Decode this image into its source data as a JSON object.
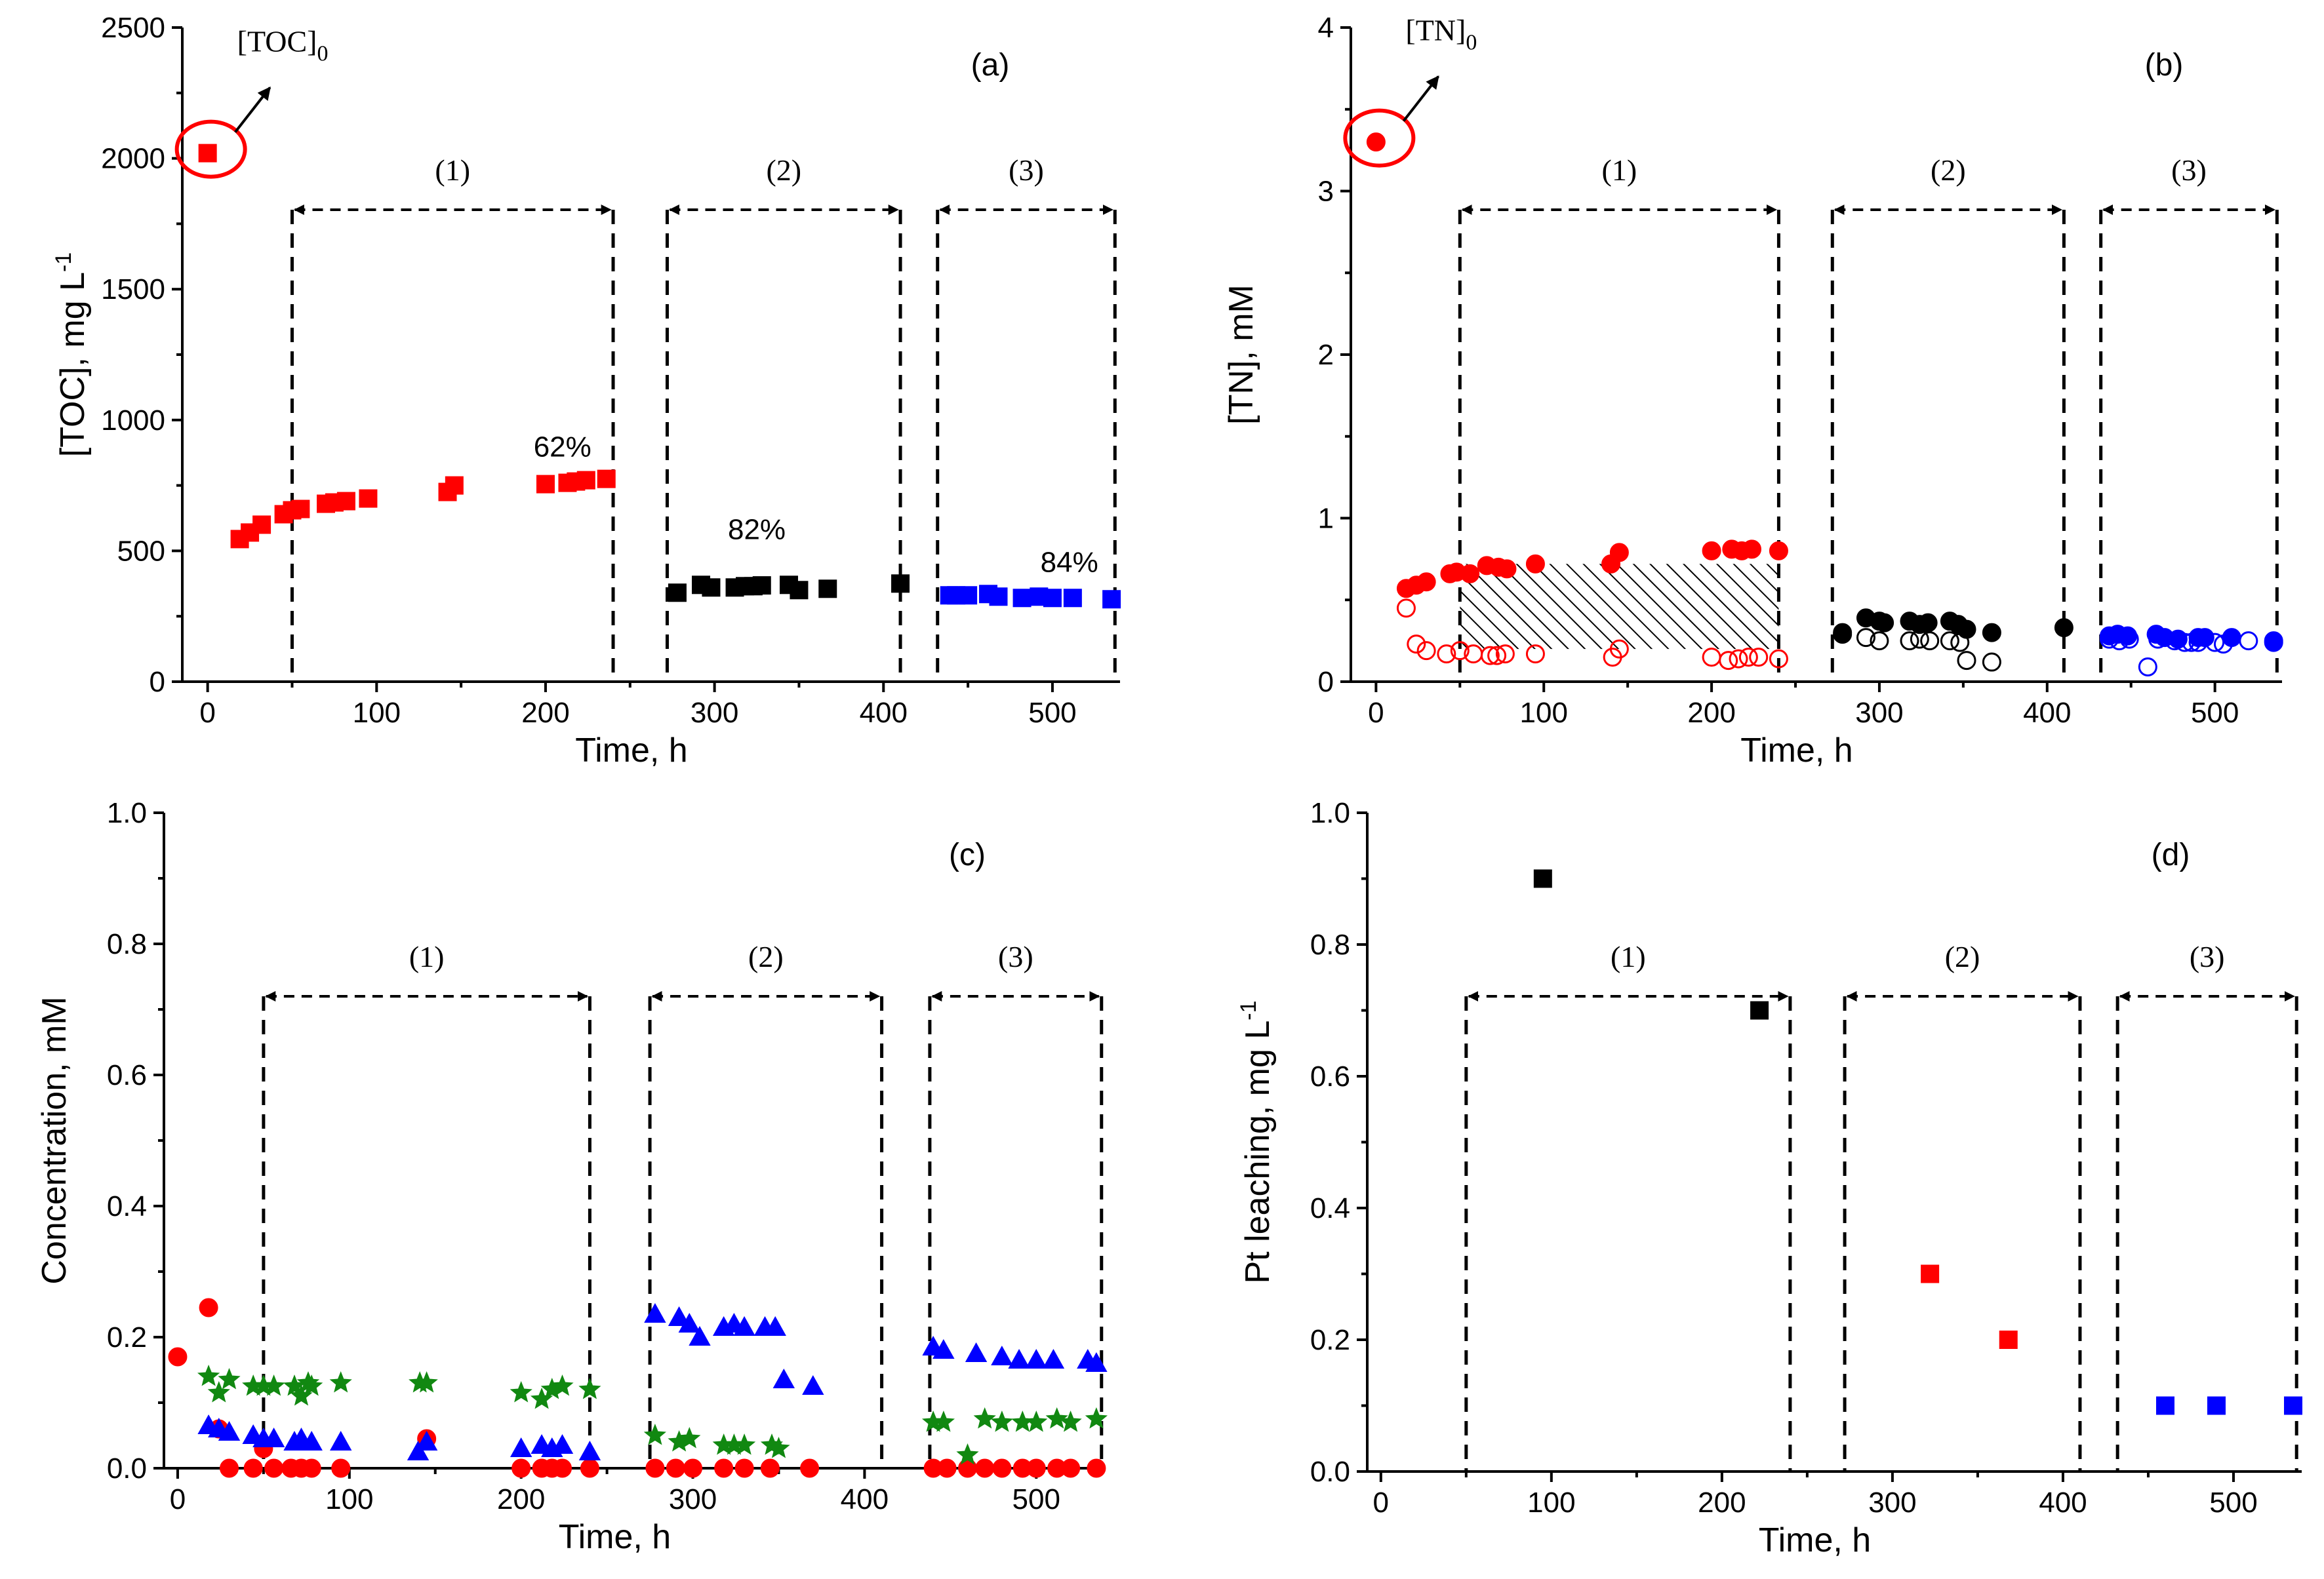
{
  "chart_data": [
    {
      "id": "a",
      "type": "scatter",
      "panel_label": "(a)",
      "xlabel": "Time, h",
      "ylabel": "[TOC], mg L",
      "ylabel_sup": "-1",
      "xlim": [
        -15,
        540
      ],
      "ylim": [
        0,
        2500
      ],
      "xticks": [
        0,
        100,
        200,
        300,
        400,
        500
      ],
      "yticks": [
        0,
        500,
        1000,
        1500,
        2000,
        2500
      ],
      "initial_label": "[TOC]",
      "initial_sub": "0",
      "initial_point": [
        0,
        2020
      ],
      "periods": [
        {
          "label": "(1)",
          "start": 50,
          "end": 240
        },
        {
          "label": "(2)",
          "start": 272,
          "end": 410
        },
        {
          "label": "(3)",
          "start": 432,
          "end": 537
        }
      ],
      "annotations": [
        {
          "text": "62%",
          "x": 210,
          "y": 860
        },
        {
          "text": "82%",
          "x": 325,
          "y": 545
        },
        {
          "text": "84%",
          "x": 510,
          "y": 420
        }
      ],
      "series": [
        {
          "name": "period-1",
          "marker": "square",
          "color": "#ff0000",
          "x": [
            19,
            25,
            32,
            45,
            50,
            55,
            70,
            75,
            82,
            95,
            142,
            146,
            200,
            213,
            218,
            224,
            236
          ],
          "y": [
            545,
            570,
            600,
            640,
            655,
            660,
            680,
            685,
            690,
            700,
            725,
            750,
            755,
            760,
            765,
            770,
            775
          ]
        },
        {
          "name": "period-2",
          "marker": "square",
          "color": "#000000",
          "x": [
            278,
            292,
            298,
            312,
            318,
            323,
            328,
            344,
            350,
            367,
            410
          ],
          "y": [
            340,
            370,
            360,
            360,
            365,
            365,
            368,
            370,
            350,
            355,
            375
          ]
        },
        {
          "name": "period-3",
          "marker": "square",
          "color": "#0000ff",
          "x": [
            439,
            443,
            450,
            462,
            468,
            482,
            492,
            500,
            512,
            535
          ],
          "y": [
            330,
            330,
            330,
            335,
            325,
            320,
            325,
            320,
            320,
            315
          ]
        }
      ]
    },
    {
      "id": "b",
      "type": "scatter",
      "panel_label": "(b)",
      "xlabel": "Time, h",
      "ylabel": "[TN], mM",
      "xlim": [
        -15,
        540
      ],
      "ylim": [
        0,
        4
      ],
      "xticks": [
        0,
        100,
        200,
        300,
        400,
        500
      ],
      "yticks": [
        0,
        1,
        2,
        3,
        4
      ],
      "initial_label": "[TN]",
      "initial_sub": "0",
      "initial_point": [
        0,
        3.3
      ],
      "periods": [
        {
          "label": "(1)",
          "start": 50,
          "end": 240
        },
        {
          "label": "(2)",
          "start": 272,
          "end": 410
        },
        {
          "label": "(3)",
          "start": 432,
          "end": 537
        }
      ],
      "hatched_region": {
        "x0": 50,
        "x1": 240,
        "y0": 0.2,
        "y1": 0.72
      },
      "series": [
        {
          "name": "period-1-total",
          "marker": "circle",
          "fill": true,
          "color": "#ff0000",
          "x": [
            18,
            24,
            30,
            44,
            48,
            56,
            66,
            73,
            78,
            95,
            140,
            145,
            200,
            212,
            218,
            224,
            240
          ],
          "y": [
            0.57,
            0.59,
            0.61,
            0.66,
            0.67,
            0.66,
            0.71,
            0.7,
            0.69,
            0.72,
            0.72,
            0.79,
            0.8,
            0.81,
            0.8,
            0.81,
            0.8
          ]
        },
        {
          "name": "period-1-open",
          "marker": "circle",
          "fill": false,
          "color": "#ff0000",
          "x": [
            18,
            24,
            30,
            42,
            50,
            58,
            68,
            72,
            77,
            95,
            141,
            145,
            200,
            210,
            216,
            222,
            228,
            240
          ],
          "y": [
            0.45,
            0.23,
            0.19,
            0.17,
            0.19,
            0.17,
            0.16,
            0.16,
            0.17,
            0.17,
            0.15,
            0.2,
            0.15,
            0.13,
            0.14,
            0.15,
            0.15,
            0.14
          ]
        },
        {
          "name": "period-2-total",
          "marker": "circle",
          "fill": true,
          "color": "#000000",
          "x": [
            278,
            292,
            300,
            303,
            318,
            324,
            329,
            342,
            347,
            352,
            367,
            410
          ],
          "y": [
            0.3,
            0.39,
            0.37,
            0.36,
            0.37,
            0.35,
            0.36,
            0.37,
            0.35,
            0.32,
            0.3,
            0.33
          ]
        },
        {
          "name": "period-2-open",
          "marker": "circle",
          "fill": false,
          "color": "#000000",
          "x": [
            278,
            292,
            300,
            318,
            324,
            330,
            342,
            348,
            352,
            367
          ],
          "y": [
            0.29,
            0.27,
            0.25,
            0.25,
            0.26,
            0.25,
            0.25,
            0.24,
            0.13,
            0.12
          ]
        },
        {
          "name": "period-3-total",
          "marker": "circle",
          "fill": true,
          "color": "#0000ff",
          "x": [
            437,
            442,
            448,
            465,
            470,
            478,
            490,
            494,
            510,
            535
          ],
          "y": [
            0.28,
            0.29,
            0.28,
            0.29,
            0.27,
            0.26,
            0.27,
            0.27,
            0.27,
            0.24
          ]
        },
        {
          "name": "period-3-open",
          "marker": "circle",
          "fill": false,
          "color": "#0000ff",
          "x": [
            437,
            443,
            449,
            460,
            466,
            476,
            482,
            486,
            490,
            500,
            505,
            520,
            535
          ],
          "y": [
            0.26,
            0.25,
            0.26,
            0.09,
            0.26,
            0.25,
            0.24,
            0.24,
            0.24,
            0.24,
            0.23,
            0.25,
            0.25
          ]
        }
      ]
    },
    {
      "id": "c",
      "type": "scatter",
      "panel_label": "(c)",
      "xlabel": "Time, h",
      "ylabel": "Concentration, mM",
      "xlim": [
        -8,
        540
      ],
      "ylim": [
        0,
        1.0
      ],
      "xticks": [
        0,
        100,
        200,
        300,
        400,
        500
      ],
      "yticks": [
        0.0,
        0.2,
        0.4,
        0.6,
        0.8,
        1.0
      ],
      "yticklabels": [
        "0.0",
        "0.2",
        "0.4",
        "0.6",
        "0.8",
        "1.0"
      ],
      "periods": [
        {
          "label": "(1)",
          "start": 50,
          "end": 240
        },
        {
          "label": "(2)",
          "start": 275,
          "end": 410
        },
        {
          "label": "(3)",
          "start": 438,
          "end": 538
        }
      ],
      "series": [
        {
          "name": "red-circles",
          "marker": "circle",
          "color": "#ff0000",
          "x": [
            0,
            18,
            24,
            30,
            44,
            50,
            56,
            66,
            72,
            78,
            95,
            145,
            200,
            212,
            218,
            224,
            240,
            278,
            290,
            300,
            318,
            330,
            345,
            368,
            440,
            448,
            460,
            470,
            480,
            492,
            500,
            512,
            520,
            535
          ],
          "y": [
            0.17,
            0.245,
            0.06,
            0.0,
            0.0,
            0.03,
            0.0,
            0.0,
            0.0,
            0.0,
            0.0,
            0.045,
            0.0,
            0.0,
            0.0,
            0.0,
            0.0,
            0.0,
            0.0,
            0.0,
            0.0,
            0.0,
            0.0,
            0.0,
            0.0,
            0.0,
            0.0,
            0.0,
            0.0,
            0.0,
            0.0,
            0.0,
            0.0,
            0.0
          ]
        },
        {
          "name": "blue-triangles",
          "marker": "triangle",
          "color": "#0000ff",
          "x": [
            18,
            24,
            30,
            44,
            50,
            56,
            68,
            72,
            78,
            95,
            140,
            145,
            200,
            212,
            218,
            224,
            240,
            278,
            292,
            298,
            304,
            318,
            324,
            330,
            342,
            348,
            353,
            370,
            440,
            446,
            465,
            480,
            490,
            500,
            510,
            530,
            535
          ],
          "y": [
            0.065,
            0.06,
            0.055,
            0.05,
            0.045,
            0.045,
            0.04,
            0.045,
            0.04,
            0.04,
            0.025,
            0.04,
            0.03,
            0.035,
            0.03,
            0.035,
            0.025,
            0.235,
            0.23,
            0.22,
            0.2,
            0.215,
            0.22,
            0.215,
            0.215,
            0.215,
            0.135,
            0.125,
            0.185,
            0.18,
            0.175,
            0.17,
            0.165,
            0.165,
            0.165,
            0.165,
            0.16
          ]
        },
        {
          "name": "green-stars",
          "marker": "star",
          "color": "#118811",
          "x": [
            18,
            24,
            30,
            44,
            50,
            56,
            68,
            72,
            76,
            78,
            95,
            141,
            145,
            200,
            212,
            218,
            224,
            240,
            278,
            292,
            298,
            318,
            324,
            330,
            346,
            350,
            440,
            446,
            460,
            470,
            480,
            492,
            500,
            512,
            520,
            535
          ],
          "y": [
            0.14,
            0.115,
            0.135,
            0.125,
            0.125,
            0.125,
            0.125,
            0.11,
            0.13,
            0.125,
            0.13,
            0.13,
            0.13,
            0.115,
            0.105,
            0.12,
            0.125,
            0.12,
            0.05,
            0.04,
            0.045,
            0.035,
            0.035,
            0.035,
            0.035,
            0.03,
            0.07,
            0.07,
            0.02,
            0.075,
            0.07,
            0.07,
            0.07,
            0.075,
            0.07,
            0.075
          ]
        }
      ]
    },
    {
      "id": "d",
      "type": "scatter",
      "panel_label": "(d)",
      "xlabel": "Time, h",
      "ylabel": "Pt leaching, mg L",
      "ylabel_sup": "-1",
      "xlim": [
        -8,
        540
      ],
      "ylim": [
        0,
        1.0
      ],
      "xticks": [
        0,
        100,
        200,
        300,
        400,
        500
      ],
      "yticks": [
        0.0,
        0.2,
        0.4,
        0.6,
        0.8,
        1.0
      ],
      "yticklabels": [
        "0.0",
        "0.2",
        "0.4",
        "0.6",
        "0.8",
        "1.0"
      ],
      "periods": [
        {
          "label": "(1)",
          "start": 50,
          "end": 240
        },
        {
          "label": "(2)",
          "start": 272,
          "end": 410
        },
        {
          "label": "(3)",
          "start": 432,
          "end": 537
        }
      ],
      "series": [
        {
          "name": "period-1",
          "marker": "square",
          "color": "#000000",
          "x": [
            95,
            222
          ],
          "y": [
            0.9,
            0.7
          ]
        },
        {
          "name": "period-2",
          "marker": "square",
          "color": "#ff0000",
          "x": [
            322,
            368
          ],
          "y": [
            0.3,
            0.2
          ]
        },
        {
          "name": "period-3",
          "marker": "square",
          "color": "#0000ff",
          "x": [
            460,
            490,
            535
          ],
          "y": [
            0.1,
            0.1,
            0.1
          ]
        }
      ]
    }
  ]
}
